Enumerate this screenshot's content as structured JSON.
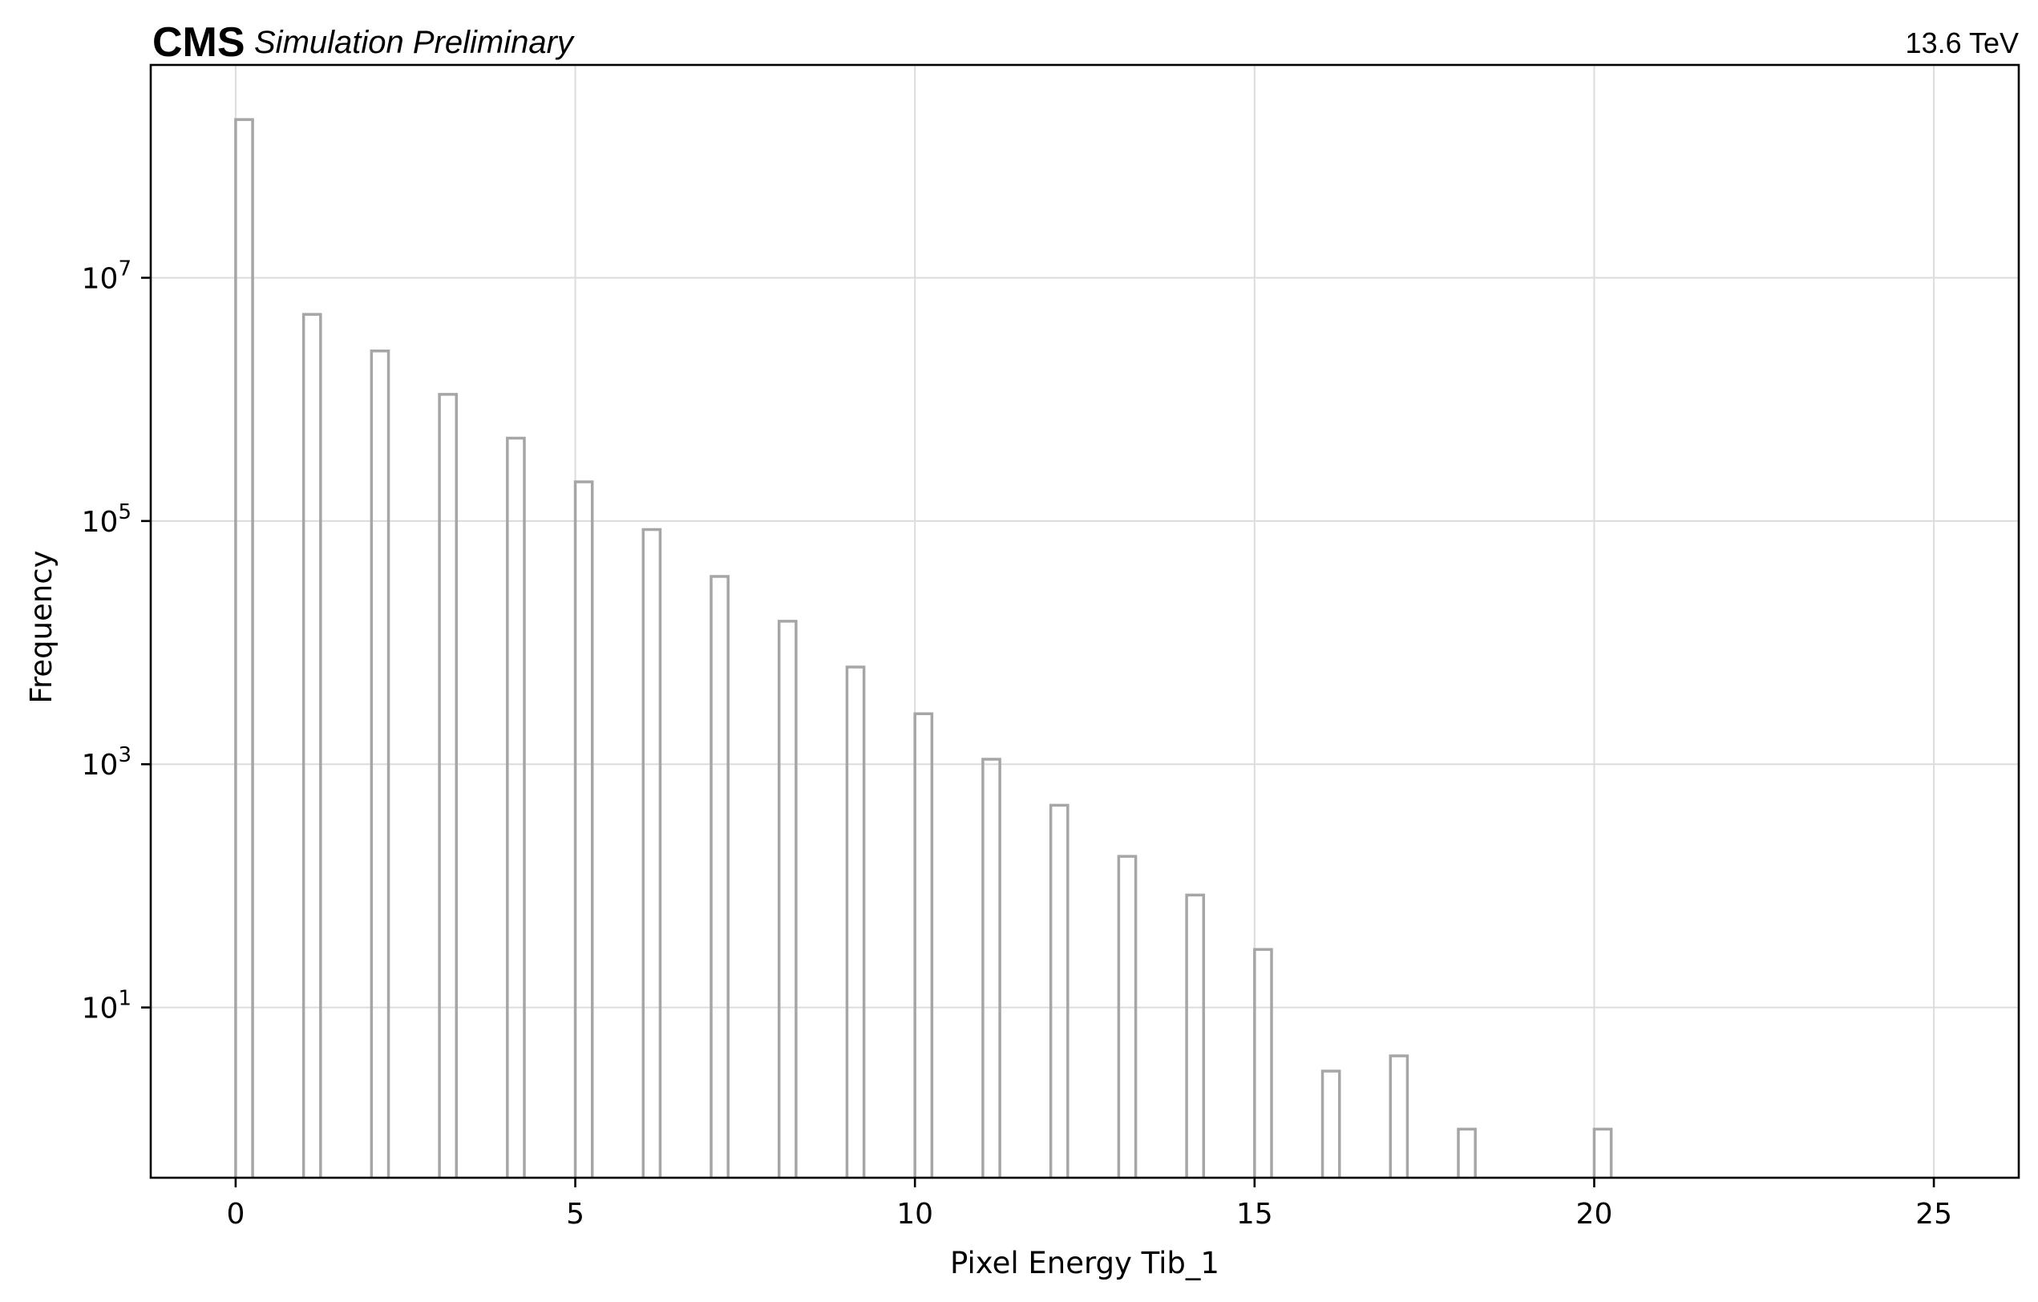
{
  "header": {
    "experiment": "CMS",
    "status": "Simulation Preliminary",
    "energy": "13.6 TeV"
  },
  "chart_data": {
    "type": "bar",
    "style": "step histogram, log y-axis",
    "xlabel": "Pixel Energy Tib_1",
    "ylabel": "Frequency",
    "xlim": [
      -1.25,
      26.25
    ],
    "ylim_log10": [
      -0.4,
      8.75
    ],
    "yscale": "log",
    "grid": true,
    "xticks": [
      {
        "value": 0,
        "label": "0"
      },
      {
        "value": 5,
        "label": "5"
      },
      {
        "value": 10,
        "label": "10"
      },
      {
        "value": 15,
        "label": "15"
      },
      {
        "value": 20,
        "label": "20"
      },
      {
        "value": 25,
        "label": "25"
      }
    ],
    "yticks": [
      {
        "value": 10,
        "base": "10",
        "exp": "1"
      },
      {
        "value": 1000,
        "base": "10",
        "exp": "3"
      },
      {
        "value": 100000,
        "base": "10",
        "exp": "5"
      },
      {
        "value": 10000000,
        "base": "10",
        "exp": "7"
      }
    ],
    "bin_width": 0.25,
    "x": [
      0,
      1,
      2,
      3,
      4,
      5,
      6,
      7,
      8,
      9,
      10,
      11,
      12,
      13,
      14,
      15,
      16,
      17,
      18,
      20
    ],
    "values": [
      200000000,
      5000000,
      2500000,
      1100000,
      480000,
      210000,
      85000,
      35000,
      15000,
      6300,
      2600,
      1100,
      460,
      175,
      84,
      30,
      3,
      4,
      1,
      1
    ],
    "color": "#a6a6a6"
  }
}
